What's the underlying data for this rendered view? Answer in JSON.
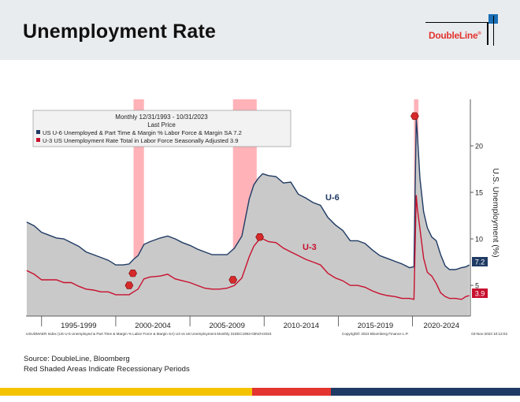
{
  "title": "Unemployment Rate",
  "logo": {
    "text": "DoubleLine",
    "mark": "®"
  },
  "footer": {
    "source": "Source: DoubleLine, Bloomberg",
    "note": "Red Shaded Areas Indicate Recessionary Periods"
  },
  "colors": {
    "u6": "#1f3a64",
    "u3": "#c8102e",
    "fill": "#c9c9c9",
    "recession": "#ff9aa0",
    "stripe_yellow": "#f5c400",
    "stripe_red": "#e3342f",
    "stripe_blue": "#1f3a64"
  },
  "chart_data": {
    "type": "area",
    "legend": {
      "header1": "Monthly 12/31/1993 - 10/31/2023",
      "header2": "Last Price",
      "u6_label": "US U-6 Unemployed & Part Time & Margin % Labor Force & Margin SA  7.2",
      "u3_label": "U-3 US Unemployment Rate Total in Labor Force Seasonally Adjusted 3.9"
    },
    "ylabel": "U.S. Unemployment (%)",
    "ylim": [
      1.7,
      25
    ],
    "yticks": [
      5,
      10,
      15,
      20
    ],
    "xlim": [
      1993.95,
      2023.9
    ],
    "x_periods": [
      {
        "label": "1995-1999",
        "start": 1995,
        "end": 2000
      },
      {
        "label": "2000-2004",
        "start": 2000,
        "end": 2005
      },
      {
        "label": "2005-2009",
        "start": 2005,
        "end": 2010
      },
      {
        "label": "2010-2014",
        "start": 2010,
        "end": 2015
      },
      {
        "label": "2015-2019",
        "start": 2015,
        "end": 2020
      },
      {
        "label": "2020-2024",
        "start": 2020,
        "end": 2025
      }
    ],
    "recessions": [
      {
        "start": 2001.2,
        "end": 2001.9
      },
      {
        "start": 2007.9,
        "end": 2009.5
      },
      {
        "start": 2020.1,
        "end": 2020.4
      }
    ],
    "series": [
      {
        "name": "U-6",
        "label": "U-6",
        "last": "7.2",
        "x": [
          1994.0,
          1994.5,
          1995.0,
          1995.5,
          1996.0,
          1996.5,
          1997.0,
          1997.5,
          1998.0,
          1998.5,
          1999.0,
          1999.5,
          2000.0,
          2000.5,
          2000.9,
          2001.2,
          2001.5,
          2001.9,
          2002.3,
          2003.0,
          2003.5,
          2004.0,
          2004.5,
          2005.0,
          2005.5,
          2006.0,
          2006.5,
          2007.0,
          2007.5,
          2008.0,
          2008.5,
          2009.0,
          2009.3,
          2009.6,
          2009.9,
          2010.3,
          2010.8,
          2011.3,
          2011.8,
          2012.3,
          2012.8,
          2013.3,
          2013.8,
          2014.3,
          2014.8,
          2015.3,
          2015.8,
          2016.3,
          2016.8,
          2017.3,
          2017.8,
          2018.3,
          2018.8,
          2019.3,
          2019.8,
          2020.1,
          2020.25,
          2020.33,
          2020.5,
          2020.75,
          2021.0,
          2021.3,
          2021.6,
          2021.9,
          2022.2,
          2022.5,
          2022.9,
          2023.3,
          2023.6,
          2023.83
        ],
        "values": [
          11.8,
          11.4,
          10.7,
          10.4,
          10.1,
          10.0,
          9.6,
          9.2,
          8.6,
          8.3,
          8.0,
          7.7,
          7.2,
          7.2,
          7.3,
          7.8,
          8.2,
          9.4,
          9.7,
          10.1,
          10.3,
          10.0,
          9.6,
          9.3,
          8.9,
          8.6,
          8.3,
          8.3,
          8.3,
          9.0,
          10.3,
          14.3,
          15.8,
          16.5,
          17.0,
          16.8,
          16.7,
          16.0,
          16.1,
          14.8,
          14.4,
          13.9,
          13.6,
          12.3,
          11.5,
          10.9,
          9.8,
          9.8,
          9.5,
          8.8,
          8.2,
          7.9,
          7.6,
          7.3,
          6.9,
          7.0,
          22.9,
          21.2,
          16.5,
          12.9,
          11.2,
          10.2,
          9.8,
          8.3,
          7.1,
          6.7,
          6.7,
          6.9,
          7.0,
          7.2
        ]
      },
      {
        "name": "U-3",
        "label": "U-3",
        "last": "3.9",
        "x": [
          1994.0,
          1994.5,
          1995.0,
          1995.5,
          1996.0,
          1996.5,
          1997.0,
          1997.5,
          1998.0,
          1998.5,
          1999.0,
          1999.5,
          2000.0,
          2000.5,
          2000.9,
          2001.2,
          2001.5,
          2001.9,
          2002.3,
          2003.0,
          2003.5,
          2004.0,
          2004.5,
          2005.0,
          2005.5,
          2006.0,
          2006.5,
          2007.0,
          2007.5,
          2008.0,
          2008.5,
          2009.0,
          2009.3,
          2009.6,
          2009.9,
          2010.3,
          2010.8,
          2011.3,
          2011.8,
          2012.3,
          2012.8,
          2013.3,
          2013.8,
          2014.3,
          2014.8,
          2015.3,
          2015.8,
          2016.3,
          2016.8,
          2017.3,
          2017.8,
          2018.3,
          2018.8,
          2019.3,
          2019.8,
          2020.1,
          2020.25,
          2020.33,
          2020.5,
          2020.75,
          2021.0,
          2021.3,
          2021.6,
          2021.9,
          2022.2,
          2022.5,
          2022.9,
          2023.3,
          2023.6,
          2023.83
        ],
        "values": [
          6.6,
          6.2,
          5.6,
          5.6,
          5.6,
          5.3,
          5.3,
          4.9,
          4.6,
          4.5,
          4.3,
          4.3,
          4.0,
          4.0,
          4.0,
          4.3,
          4.6,
          5.7,
          5.9,
          6.0,
          6.2,
          5.7,
          5.5,
          5.3,
          5.0,
          4.7,
          4.6,
          4.6,
          4.7,
          5.0,
          5.8,
          8.1,
          9.2,
          9.8,
          10.0,
          9.7,
          9.6,
          9.0,
          8.6,
          8.2,
          7.8,
          7.5,
          7.2,
          6.3,
          5.8,
          5.5,
          5.0,
          5.0,
          4.8,
          4.4,
          4.1,
          3.9,
          3.8,
          3.6,
          3.6,
          3.5,
          14.7,
          13.2,
          11.1,
          7.9,
          6.4,
          6.0,
          5.2,
          4.2,
          3.8,
          3.6,
          3.6,
          3.5,
          3.8,
          3.9
        ]
      }
    ],
    "markers": [
      {
        "x": 2000.9,
        "y": 5.0,
        "series": "U-3"
      },
      {
        "x": 2001.15,
        "y": 6.3,
        "series": "U-6"
      },
      {
        "x": 2007.9,
        "y": 5.6,
        "series": "U-3"
      },
      {
        "x": 2009.7,
        "y": 10.2,
        "series": "U-3"
      },
      {
        "x": 2020.15,
        "y": 23.2,
        "series": "U-6"
      }
    ],
    "bottom_left_note": "USUDMAER Index (US U-6 Unemployed & Part Time & Margin % Labor Force & Margin SA) U3 vs U6 Unemployment  Monthly 31DEC1993-03NOV2023",
    "bottom_mid_note": "Copyright© 2023 Bloomberg Finance L.P.",
    "bottom_right_note": "03-Nov-2023 10:13:02"
  }
}
